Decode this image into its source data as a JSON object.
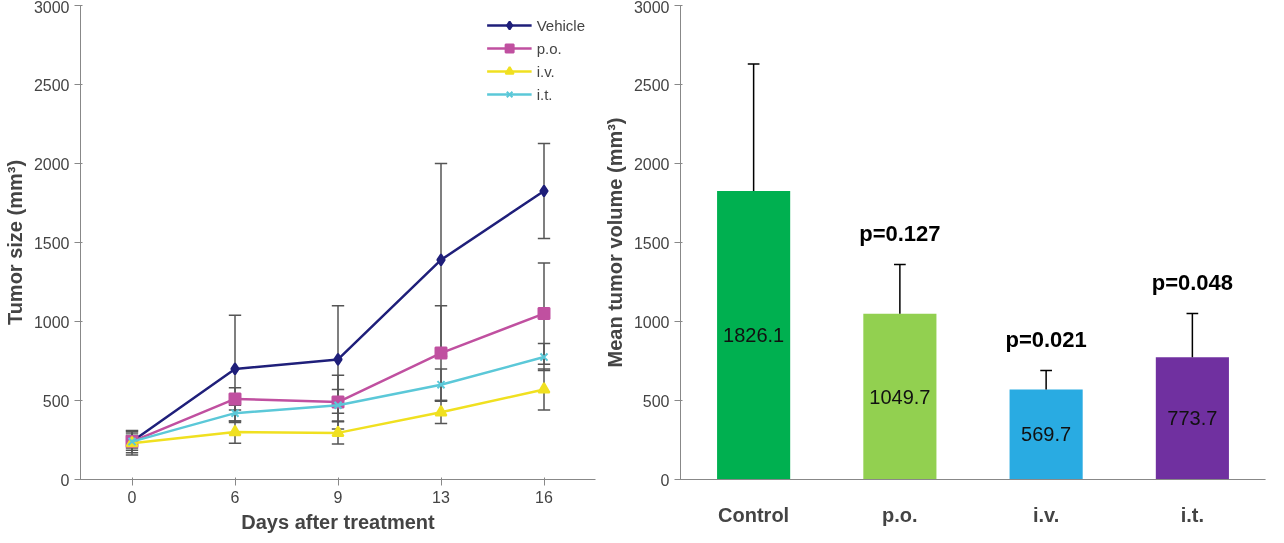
{
  "chart_data": [
    {
      "type": "line",
      "xlabel": "Days after treatment",
      "ylabel": "Tumor size (mm³)",
      "categories": [
        "0",
        "6",
        "9",
        "13",
        "16"
      ],
      "ylim": [
        0,
        3000
      ],
      "yticks": [
        0,
        500,
        1000,
        1500,
        2000,
        2500,
        3000
      ],
      "grid": false,
      "legend": "top right",
      "series": [
        {
          "name": "Vehicle",
          "color": "#1f1f7a",
          "marker": "diamond",
          "values": [
            240,
            700,
            760,
            1390,
            1826
          ],
          "errors": [
            70,
            340,
            340,
            610,
            300
          ]
        },
        {
          "name": "p.o.",
          "color": "#c050a0",
          "marker": "square",
          "values": [
            240,
            510,
            490,
            800,
            1050
          ],
          "errors": [
            55,
            70,
            170,
            300,
            320
          ]
        },
        {
          "name": "i.v.",
          "color": "#f0e020",
          "marker": "triangle",
          "values": [
            230,
            300,
            295,
            425,
            570
          ],
          "errors": [
            75,
            70,
            70,
            70,
            130
          ]
        },
        {
          "name": "i.t.",
          "color": "#5bc8d8",
          "marker": "cross",
          "values": [
            240,
            420,
            470,
            600,
            775
          ],
          "errors": [
            40,
            50,
            100,
            100,
            85
          ]
        }
      ]
    },
    {
      "type": "bar",
      "ylabel": "Mean tumor volume (mm³)",
      "categories": [
        "Control",
        "p.o.",
        "i.v.",
        "i.t."
      ],
      "values": [
        1826.1,
        1049.7,
        569.7,
        773.7
      ],
      "colors": [
        "#00b050",
        "#92d050",
        "#29abe2",
        "#7030a0"
      ],
      "errors": [
        [
          1826.1,
          2630
        ],
        [
          1049.7,
          1360
        ],
        [
          569.7,
          690
        ],
        [
          773.7,
          1050
        ]
      ],
      "data_labels": true,
      "ylim": [
        0,
        3000
      ],
      "yticks": [
        0,
        500,
        1000,
        1500,
        2000,
        2500,
        3000
      ],
      "grid": false,
      "annotations": [
        "p=0.127",
        "p=0.021",
        "p=0.048"
      ]
    }
  ]
}
